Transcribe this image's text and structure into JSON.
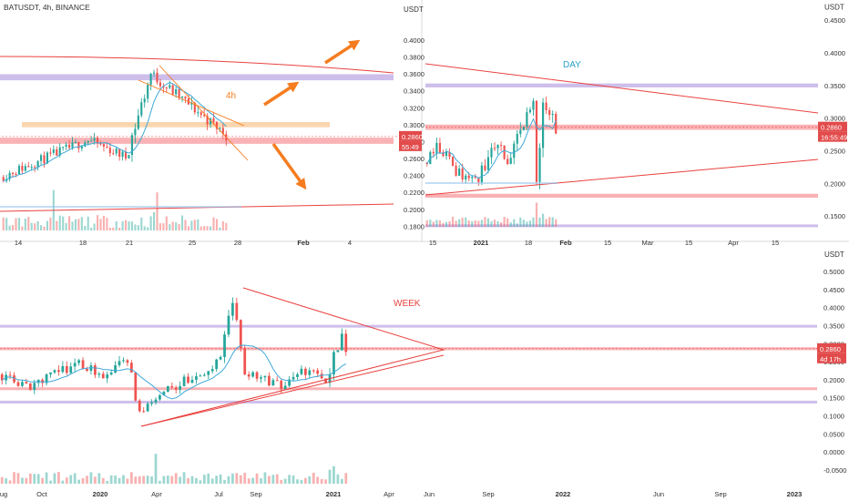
{
  "colors": {
    "up": "#26a69a",
    "down": "#ef5350",
    "resistance_band": "#c5b3e6",
    "support_band": "#f8a5a8",
    "orange": "#f7b77a",
    "arrow": "#f57c1f",
    "trend": "#e8423f",
    "ma": "#3fa9d8",
    "axis_text": "#333333",
    "week_label": "#e8423f",
    "day_label": "#2aa0c9",
    "fourh_label": "#f57c1f"
  },
  "chart_data": [
    {
      "id": "panel_4h",
      "type": "candlestick",
      "title": "BATUSDT, 4h, BINANCE",
      "label": "4h",
      "axis_unit": "USDT",
      "x_ticks": [
        "14",
        "18",
        "21",
        "25",
        "28",
        "Feb",
        "4"
      ],
      "y_ticks": [
        "0.4000",
        "0.3800",
        "0.3600",
        "0.3400",
        "0.3200",
        "0.3000",
        "0.2800",
        "0.2600",
        "0.2400",
        "0.2200",
        "0.2000",
        "0.1800"
      ],
      "ylim": [
        0.175,
        0.415
      ],
      "price_label": "0.2860",
      "countdown_label": "55:49",
      "series": [
        {
          "segment": "a",
          "start": 0.238,
          "end": 0.282,
          "n": 28,
          "vol": 0.006
        },
        {
          "segment": "b",
          "start": 0.282,
          "end": 0.262,
          "n": 12,
          "vol": 0.006
        },
        {
          "segment": "c",
          "start": 0.262,
          "end": 0.36,
          "n": 8,
          "vol": 0.01
        },
        {
          "segment": "d",
          "start": 0.36,
          "end": 0.288,
          "n": 24,
          "vol": 0.007
        }
      ],
      "resistance_band": [
        0.354,
        0.358
      ],
      "support_band": [
        0.279,
        0.283
      ],
      "orange_band": [
        0.298,
        0.302
      ]
    },
    {
      "id": "panel_day",
      "type": "candlestick",
      "label": "DAY",
      "axis_unit": "USDT",
      "x_ticks": [
        "15",
        "2021",
        "18",
        "Feb",
        "15",
        "Mar",
        "15",
        "Apr",
        "15"
      ],
      "y_ticks": [
        "0.4500",
        "0.4000",
        "0.3500",
        "0.3000",
        "0.2500",
        "0.2000",
        "0.1500"
      ],
      "ylim": [
        0.125,
        0.46
      ],
      "price_label": "0.2860",
      "countdown_label": "16:55:49",
      "resistance_band": [
        0.347,
        0.353
      ],
      "support_band": [
        0.282,
        0.29
      ],
      "lower_support_band": [
        0.178,
        0.184
      ],
      "bottom_band": [
        0.133,
        0.137
      ]
    },
    {
      "id": "panel_week",
      "type": "candlestick",
      "label": "WEEK",
      "axis_unit": "USDT",
      "x_ticks": [
        "ug",
        "Oct",
        "2020",
        "Apr",
        "Jul",
        "Sep",
        "2021",
        "Apr",
        "Jun",
        "Sep",
        "2022",
        "Jun",
        "Sep",
        "2023"
      ],
      "y_ticks": [
        "0.5000",
        "0.4500",
        "0.4000",
        "0.3500",
        "0.3000",
        "0.2500",
        "0.2000",
        "0.1500",
        "0.1000",
        "0.0500",
        "0.0000",
        "-0.0500"
      ],
      "ylim": [
        -0.065,
        0.515
      ],
      "price_label": "0.2860",
      "countdown_label": "4d 17h",
      "resistance_band": [
        0.348,
        0.352
      ],
      "support_band": [
        0.282,
        0.29
      ],
      "lower_band_1": [
        0.175,
        0.179
      ],
      "lower_band_2": [
        0.138,
        0.142
      ]
    }
  ]
}
